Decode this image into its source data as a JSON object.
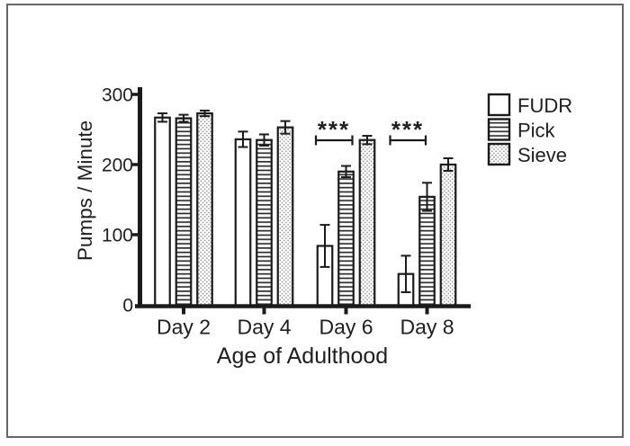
{
  "figure": {
    "background": "#ffffff",
    "frame_color": "#676767"
  },
  "chart_data": {
    "type": "bar",
    "title": "",
    "xlabel": "Age of Adulthood",
    "ylabel": "Pumps / Minute",
    "categories": [
      "Day 2",
      "Day 4",
      "Day 6",
      "Day 8"
    ],
    "yticks": [
      0,
      100,
      200,
      300
    ],
    "ylim": [
      0,
      300
    ],
    "grid": false,
    "legend_position": "right",
    "error_bars": "symmetric",
    "series": [
      {
        "name": "FUDR",
        "pattern": "solid-white",
        "values": [
          267,
          236,
          84,
          44
        ],
        "errors": [
          6,
          11,
          30,
          26
        ]
      },
      {
        "name": "Pick",
        "pattern": "horizontal-lines",
        "values": [
          266,
          235,
          190,
          154
        ],
        "errors": [
          5,
          8,
          8,
          20
        ]
      },
      {
        "name": "Sieve",
        "pattern": "dots",
        "values": [
          273,
          253,
          235,
          200
        ],
        "errors": [
          4,
          9,
          6,
          9
        ]
      }
    ],
    "significance": [
      {
        "category": "Day 6",
        "label": "***",
        "from_series": "FUDR",
        "to_series": "Pick"
      },
      {
        "category": "Day 8",
        "label": "***",
        "from_series": "FUDR",
        "to_series": "Pick"
      }
    ],
    "colors": {
      "stroke": "#1b1b1b",
      "text": "#1f1f1f",
      "hatch": "#2e2e2e",
      "dot": "#8f8f8f",
      "bar_fill": "#ffffff"
    }
  }
}
